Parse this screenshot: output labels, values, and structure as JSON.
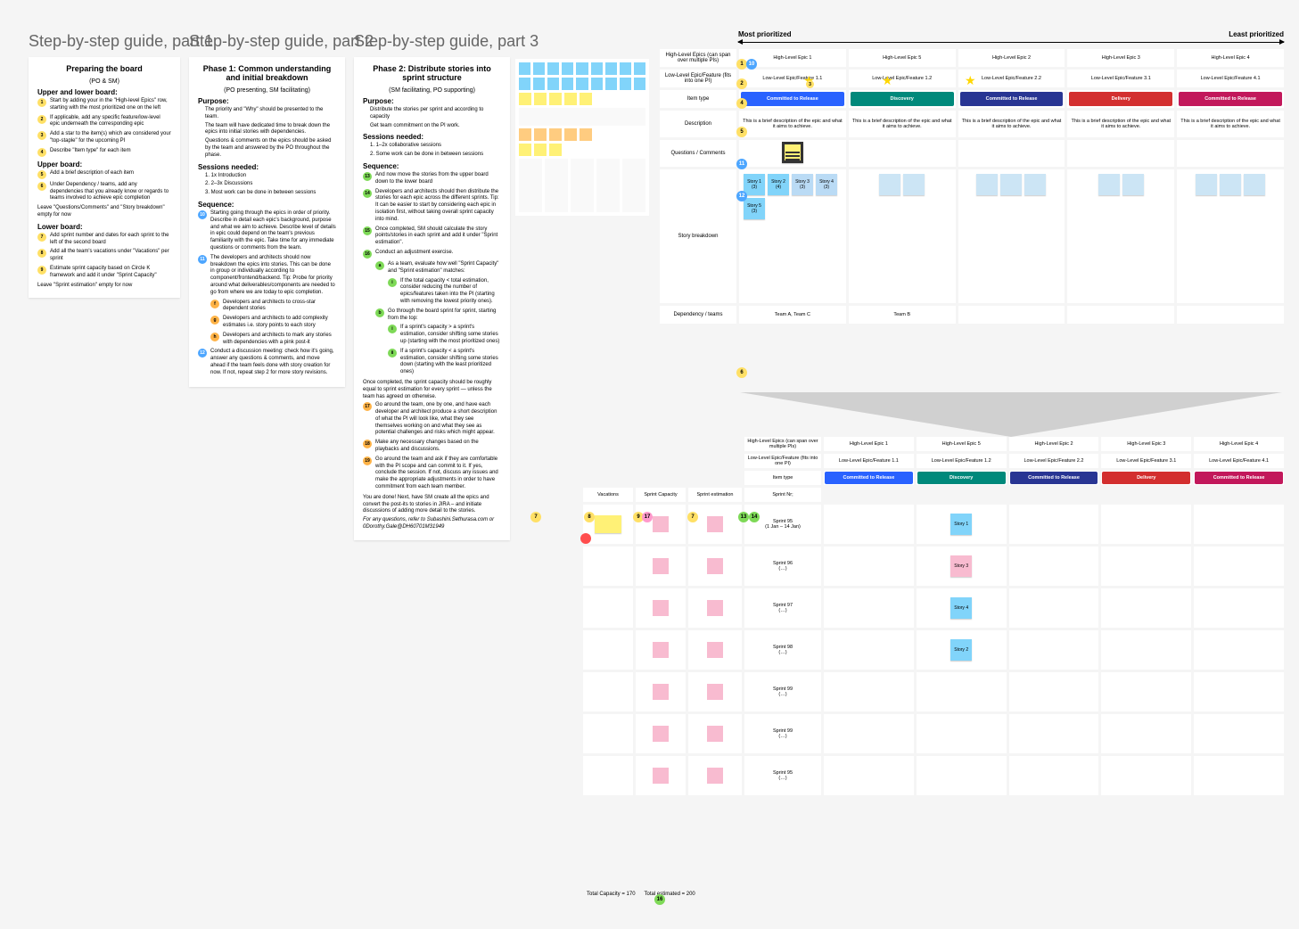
{
  "colors": {
    "yellow_sticky": "#fff176",
    "pink_sticky": "#f8bbd0",
    "blue_sticky": "#81d4fa",
    "orange_sticky": "#ffcc80",
    "cat_blue": "#2962ff",
    "cat_teal": "#00897b",
    "cat_navy": "#283593",
    "cat_red": "#d32f2f",
    "cat_magenta": "#c2185b",
    "badge_yellow": "#ffe066",
    "badge_blue": "#4da6ff"
  },
  "guide1": {
    "title": "Step-by-step guide, part 1",
    "heading": "Preparing the board",
    "sub": "(PO & SM)",
    "sec1": "Upper and lower board:",
    "s1": "Start by adding your in the \"High-level Epics\" row, starting with the most prioritized one on the left",
    "s2": "If applicable, add any specific feature/low-level epic underneath the corresponding epic",
    "s3": "Add a star to the item(s) which are considered your \"top-staple\" for the upcoming PI",
    "s4": "Describe \"Item type\" for each item",
    "sec2": "Upper board:",
    "s5": "Add a brief description of each item",
    "s6": "Under Dependency / teams, add any dependencies that you already know or regards to teams involved to achieve epic completion",
    "note1": "Leave \"Questions/Comments\" and \"Story breakdown\" empty for now",
    "sec3": "Lower board:",
    "s7": "Add sprint number and dates for each sprint to the left of the second board",
    "s8": "Add all the team's vacations under \"Vacations\" per sprint",
    "s9": "Estimate sprint capacity based on Circle K framework and add it under \"Sprint Capacity\"",
    "note2": "Leave \"Sprint estimation\" empty for now"
  },
  "guide2": {
    "title": "Step-by-step guide, part 2",
    "heading": "Phase 1: Common understanding and initial breakdown",
    "sub": "(PO presenting, SM facilitating)",
    "purpose_h": "Purpose:",
    "purpose": [
      "The priority and \"Why\" should be presented to the team.",
      "The team will have dedicated time to break down the epics into initial stories with dependencies.",
      "Questions & comments on the epics should be asked by the team and answered by the PO throughout the phase."
    ],
    "sessions_h": "Sessions needed:",
    "sessions": [
      "1. 1x Introduction",
      "2. 2–3x Discussions",
      "3. Most work can be done in between sessions"
    ],
    "seq_h": "Sequence:",
    "s10": "Starting going through the epics in order of priority. Describe in detail each epic's background, purpose and what we aim to achieve. Describe level of details in epic could depend on the team's previous familiarity with the epic. Take time for any immediate questions or comments from the team.",
    "s11": "The developers and architects should now breakdown the epics into stories. This can be done in group or individually according to component/frontend/backend. Tip: Probe for priority around what deliverables/components are needed to go from where we are today to epic completion.",
    "s11f": "Developers and architects to cross-star dependent stories",
    "s11g": "Developers and architects to add complexity estimates i.e. story points to each story",
    "s11h": "Developers and architects to mark any stories with dependencies with a pink post-it",
    "s12": "Conduct a discussion meeting: check how it's going, answer any questions & comments, and move ahead if the team feels done with story creation for now. If not, repeat step 2 for more story revisions."
  },
  "guide3": {
    "title": "Step-by-step guide, part 3",
    "heading": "Phase 2: Distribute stories into sprint structure",
    "sub": "(SM facilitating, PO supporting)",
    "purpose_h": "Purpose:",
    "purpose": [
      "Distribute the stories per sprint and according to capacity",
      "Get team commitment on the PI work."
    ],
    "sessions_h": "Sessions needed:",
    "sessions": [
      "1. 1–2x collaborative sessions",
      "2. Some work can be done in between sessions"
    ],
    "seq_h": "Sequence:",
    "s13": "And now move the stories from the upper board down to the lower board",
    "s14": "Developers and architects should then distribute the stories for each epic across the different sprints. Tip: It can be easier to start by considering each epic in isolation first, without taking overall sprint capacity into mind.",
    "s15": "Once completed, SM should calculate the story points/stories in each sprint and add it under \"Sprint estimation\".",
    "s16": "Conduct an adjustment exercise.",
    "s16a": "As a team, evaluate how well \"Sprint Capacity\" and \"Sprint estimation\" matches:",
    "s16a1": "If the total capacity < total estimation, consider reducing the number of epics/features taken into the PI (starting with removing the lowest priority ones).",
    "s16b": "Go through the board sprint for sprint, starting from the top:",
    "s16b1": "If a sprint's capacity > a sprint's estimation, consider shifting some stories up (starting with the most prioritized ones)",
    "s16b2": "If a sprint's capacity < a sprint's estimation, consider shifting some stories down (starting with the least prioritized ones)",
    "after": "Once completed, the sprint capacity should be roughly equal to sprint estimation for every sprint — unless the team has agreed on otherwise.",
    "s17": "Go around the team, one by one, and have each developer and architect produce a short description of what the PI will look like, what they see themselves working on and what they see as potential challenges and risks which might appear.",
    "s18": "Make any necessary changes based on the playbacks and discussions.",
    "s19": "Go around the team and ask if they are comfortable with the PI scope and can commit to it. If yes, conclude the session. If not, discuss any issues and make the appropriate adjustments in order to have commitment from each team member.",
    "footer1": "You are done! Next, have SM create all the epics and convert the post-its to stories in JIRA – and initiate discussions of adding more detail to the stories.",
    "footer2": "For any questions, refer to Subashini.Sethurasa.com or 0Dorothy.Gale@DH60701M31949"
  },
  "upper": {
    "most": "Most prioritized",
    "least": "Least prioritized",
    "row_labels": [
      "High-Level Epics (can span over multiple PIs)",
      "Low-Level Epic/Feature (fits into one PI)",
      "Item type",
      "Description",
      "Questions / Comments",
      "Story breakdown",
      "Dependency / teams"
    ],
    "epics": [
      "High-Level Epic 1",
      "High-Level Epic 5",
      "High-Level Epic 2",
      "High-Level Epic 3",
      "High-Level Epic 4"
    ],
    "features": [
      "Low-Level Epic/Feature 1.1",
      "Low-Level Epic/Feature 1.2",
      "Low-Level Epic/Feature 2.2",
      "Low-Level Epic/Feature 3.1",
      "Low-Level Epic/Feature 4.1"
    ],
    "types": [
      "Committed to Release",
      "Discovery",
      "Committed to Release",
      "Delivery",
      "Committed to Release"
    ],
    "desc": "This is a brief description of the epic and what it aims to achieve.",
    "stories": [
      {
        "label": "Story 1 (3)",
        "color": "#81d4fa"
      },
      {
        "label": "Story 2 (4)",
        "color": "#81d4fa"
      },
      {
        "label": "Story 3 (3)",
        "color": "#badbf5"
      },
      {
        "label": "Story 4 (3)",
        "color": "#badbf5"
      },
      {
        "label": "Story 5 (3)",
        "color": "#81d4fa"
      }
    ],
    "dep_teams": [
      "Team A, Team C",
      "Team B"
    ]
  },
  "lower": {
    "headers": [
      "Vacations",
      "Sprint Capacity",
      "Sprint estimation"
    ],
    "row_sprint_label": "Sprint Nr;",
    "sprints": [
      {
        "n": "Sprint 95",
        "dates": "(1 Jan – 14 Jan)"
      },
      {
        "n": "Sprint 96",
        "dates": "(…)"
      },
      {
        "n": "Sprint 97",
        "dates": "(…)"
      },
      {
        "n": "Sprint 98",
        "dates": "(…)"
      },
      {
        "n": "Sprint 99",
        "dates": "(…)"
      },
      {
        "n": "Sprint 99",
        "dates": "(…)"
      },
      {
        "n": "Sprint 95",
        "dates": "(…)"
      }
    ],
    "story_cells": [
      {
        "row": 0,
        "col": 1,
        "label": "Story 1",
        "color": "#81d4fa"
      },
      {
        "row": 1,
        "col": 1,
        "label": "Story 3",
        "color": "#f8bbd0"
      },
      {
        "row": 2,
        "col": 1,
        "label": "Story 4",
        "color": "#81d4fa"
      },
      {
        "row": 3,
        "col": 1,
        "label": "Story 2",
        "color": "#81d4fa"
      }
    ],
    "total_cap": "Total Capacity = 170",
    "total_est": "Total estimated = 200"
  }
}
